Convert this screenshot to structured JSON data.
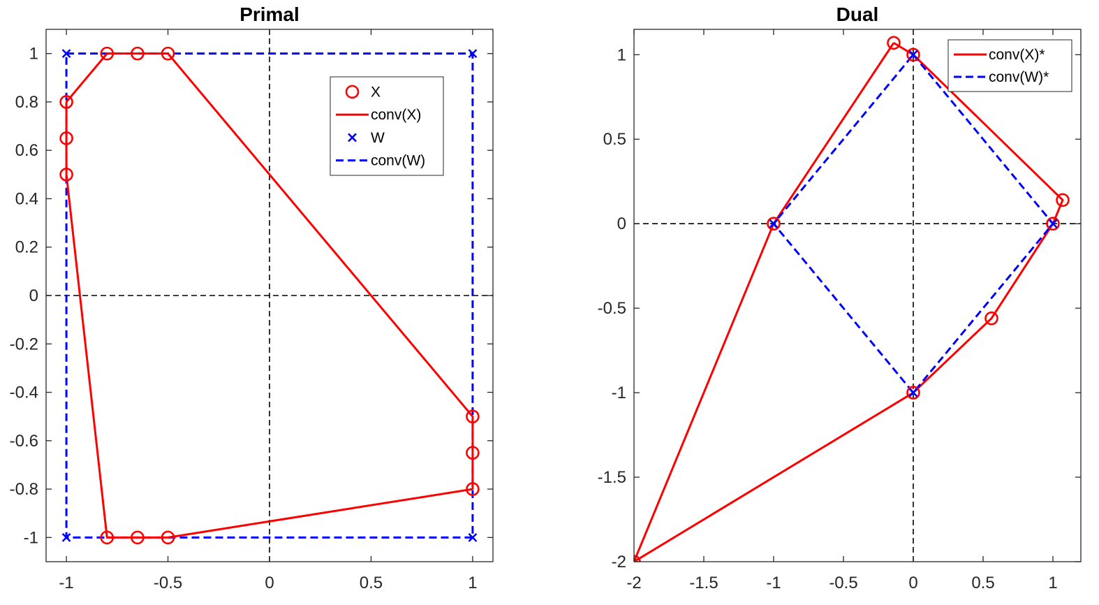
{
  "colors": {
    "red": "#ff0000",
    "blue": "#0000ff",
    "black": "#000000",
    "axis": "#262626"
  },
  "chart_data": [
    {
      "type": "line",
      "title": "Primal",
      "xlabel": "",
      "ylabel": "",
      "xlim": [
        -1.1,
        1.1
      ],
      "ylim": [
        -1.1,
        1.1
      ],
      "xticks": [
        -1,
        -0.5,
        0,
        0.5,
        1
      ],
      "xtick_labels": [
        "-1",
        "-0.5",
        "0",
        "0.5",
        "1"
      ],
      "yticks": [
        -1,
        -0.8,
        -0.6,
        -0.4,
        -0.2,
        0,
        0.2,
        0.4,
        0.6,
        0.8,
        1
      ],
      "ytick_labels": [
        "-1",
        "-0.8",
        "-0.6",
        "-0.4",
        "-0.2",
        "0",
        "0.2",
        "0.4",
        "0.6",
        "0.8",
        "1"
      ],
      "zero_lines": true,
      "legend_position": "top-right-inner",
      "series": [
        {
          "name": "conv(W)",
          "style": "dashed",
          "color": "#0000ff",
          "marker": "none",
          "legend": "conv(W)",
          "x": [
            -1,
            1,
            1,
            -1,
            -1
          ],
          "y": [
            1,
            1,
            -1,
            -1,
            1
          ]
        },
        {
          "name": "conv(X)",
          "style": "solid",
          "color": "#ff0000",
          "marker": "none",
          "legend": "conv(X)",
          "x": [
            -0.8,
            -0.5,
            1,
            1,
            -0.5,
            -0.8,
            -1,
            -1,
            -0.8
          ],
          "y": [
            1,
            1,
            -0.5,
            -0.8,
            -1,
            -1,
            0.5,
            0.8,
            1
          ]
        },
        {
          "name": "X",
          "style": "none",
          "color": "#ff0000",
          "marker": "circle",
          "legend": "X",
          "x": [
            -0.8,
            -0.65,
            -0.5,
            -1,
            -1,
            -1,
            1,
            1,
            1,
            -0.8,
            -0.65,
            -0.5
          ],
          "y": [
            1,
            1,
            1,
            0.8,
            0.65,
            0.5,
            -0.5,
            -0.65,
            -0.8,
            -1,
            -1,
            -1
          ]
        },
        {
          "name": "W",
          "style": "none",
          "color": "#0000ff",
          "marker": "x",
          "legend": "W",
          "x": [
            -1,
            1,
            -1,
            1
          ],
          "y": [
            1,
            1,
            -1,
            -1
          ]
        }
      ],
      "legend_order": [
        "X",
        "conv(X)",
        "W",
        "conv(W)"
      ]
    },
    {
      "type": "line",
      "title": "Dual",
      "xlabel": "",
      "ylabel": "",
      "xlim": [
        -2,
        1.2
      ],
      "ylim": [
        -2,
        1.15
      ],
      "xticks": [
        -2,
        -1.5,
        -1,
        -0.5,
        0,
        0.5,
        1
      ],
      "xtick_labels": [
        "-2",
        "-1.5",
        "-1",
        "-0.5",
        "0",
        "0.5",
        "1"
      ],
      "yticks": [
        -2,
        -1.5,
        -1,
        -0.5,
        0,
        0.5,
        1
      ],
      "ytick_labels": [
        "-2",
        "-1.5",
        "-1",
        "-0.5",
        "0",
        "0.5",
        "1"
      ],
      "zero_lines": true,
      "legend_position": "top-right-inner",
      "series": [
        {
          "name": "conv(X)*",
          "style": "solid",
          "color": "#ff0000",
          "marker": "none",
          "legend": "conv(X)*",
          "x": [
            -0.14,
            0,
            1.07,
            1,
            0.56,
            0,
            -2,
            -1,
            -0.14
          ],
          "y": [
            1.07,
            1,
            0.14,
            0,
            -0.56,
            -1,
            -2,
            0,
            1.07
          ]
        },
        {
          "name": "conv(W)*",
          "style": "dashed",
          "color": "#0000ff",
          "marker": "none",
          "legend": "conv(W)*",
          "x": [
            0,
            1,
            0,
            -1,
            0
          ],
          "y": [
            1,
            0,
            -1,
            0,
            1
          ]
        },
        {
          "name": "X* vertices",
          "style": "none",
          "color": "#ff0000",
          "marker": "circle",
          "legend": "",
          "x": [
            -0.14,
            0,
            1.07,
            1,
            0.56,
            0,
            -2,
            -1
          ],
          "y": [
            1.07,
            1,
            0.14,
            0,
            -0.56,
            -1,
            -2,
            0
          ]
        },
        {
          "name": "W* vertices",
          "style": "none",
          "color": "#0000ff",
          "marker": "x",
          "legend": "",
          "x": [
            0,
            1,
            0,
            -1
          ],
          "y": [
            1,
            0,
            -1,
            0
          ]
        }
      ],
      "legend_order": [
        "conv(X)*",
        "conv(W)*"
      ]
    }
  ]
}
